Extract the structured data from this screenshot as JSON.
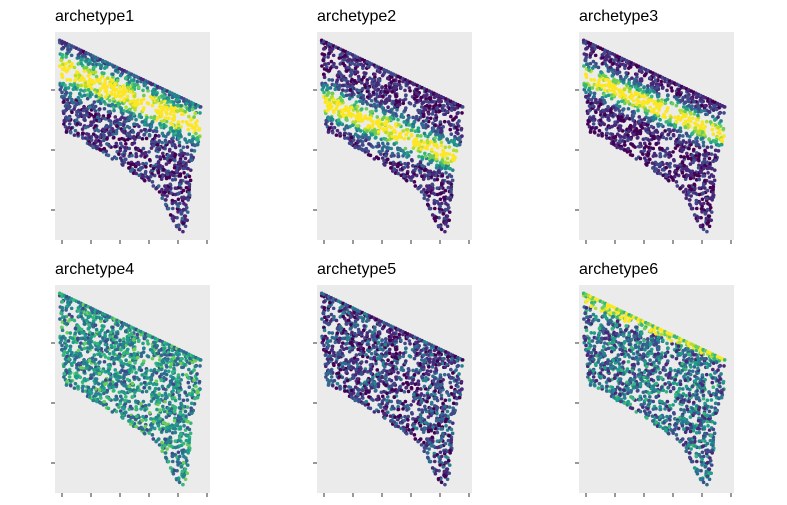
{
  "chart_data": [
    {
      "type": "scatter",
      "title": "archetype1",
      "xlabel": "",
      "ylabel": "",
      "grid": false,
      "legend": "none",
      "x_ticks": 6,
      "y_ticks": 3,
      "color_scale": "viridis",
      "high_band": "upper-middle"
    },
    {
      "type": "scatter",
      "title": "archetype2",
      "xlabel": "",
      "ylabel": "",
      "grid": false,
      "legend": "none",
      "x_ticks": 6,
      "y_ticks": 3,
      "color_scale": "viridis",
      "high_band": "lower-middle"
    },
    {
      "type": "scatter",
      "title": "archetype3",
      "xlabel": "",
      "ylabel": "",
      "grid": false,
      "legend": "none",
      "x_ticks": 6,
      "y_ticks": 3,
      "color_scale": "viridis",
      "high_band": "middle"
    },
    {
      "type": "scatter",
      "title": "archetype4",
      "xlabel": "",
      "ylabel": "",
      "grid": false,
      "legend": "none",
      "x_ticks": 6,
      "y_ticks": 3,
      "color_scale": "viridis",
      "high_band": "diffuse"
    },
    {
      "type": "scatter",
      "title": "archetype5",
      "xlabel": "",
      "ylabel": "",
      "grid": false,
      "legend": "none",
      "x_ticks": 6,
      "y_ticks": 3,
      "color_scale": "viridis",
      "high_band": "none"
    },
    {
      "type": "scatter",
      "title": "archetype6",
      "xlabel": "",
      "ylabel": "",
      "grid": false,
      "legend": "none",
      "x_ticks": 6,
      "y_ticks": 3,
      "color_scale": "viridis",
      "high_band": "edge"
    }
  ],
  "colors": {
    "panel_background": "#EBEBEB",
    "viridis": [
      "#440154",
      "#482878",
      "#3E4A89",
      "#31688E",
      "#26828E",
      "#1F9E89",
      "#35B779",
      "#6DCD59",
      "#B4DE2C",
      "#FDE725"
    ]
  }
}
